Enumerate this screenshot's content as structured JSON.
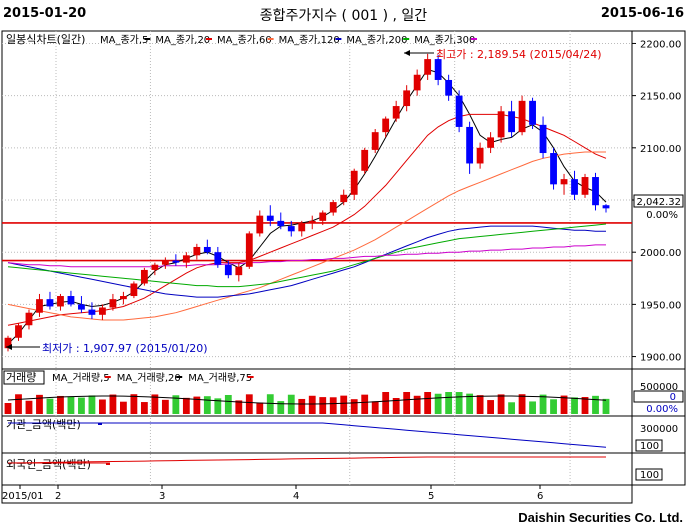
{
  "header": {
    "start_date": "2015-01-20",
    "title": "종합주가지수 ( 001 ) , 일간",
    "end_date": "2015-06-16"
  },
  "price_panel": {
    "legend_title": "일봉식차트(일간)",
    "ma_labels": [
      "MA_종가,5",
      "MA_종가,20",
      "MA_종가,60",
      "MA_종가,120",
      "MA_종가,200",
      "MA_종가,300"
    ],
    "ma_colors": [
      "#000000",
      "#e00000",
      "#ff6a3d",
      "#0000c0",
      "#00aa00",
      "#cc00cc"
    ],
    "high_label": "최고가 : 2,189.54 (2015/04/24)",
    "low_label": "최저가 : 1,907.97 (2015/01/20)",
    "y_ticks": [
      "2200.00",
      "2150.00",
      "2100.00",
      "2050.00",
      "2000.00",
      "1950.00",
      "1900.00"
    ],
    "current_value": "2,042.32",
    "current_pct": "0.00%"
  },
  "volume_panel": {
    "legend_title": "거래량",
    "ma_labels": [
      "MA_거래량,5",
      "MA_거래량,20",
      "MA_거래량,75"
    ],
    "y_tick": "500000",
    "current_value": "0",
    "current_pct": "0.00%"
  },
  "inst_panel": {
    "legend_title": "기관_금액(백만)",
    "y_tick": "300000",
    "box": "100"
  },
  "foreign_panel": {
    "legend_title": "외국인_금액(백만)",
    "box": "100"
  },
  "x_axis": {
    "labels": [
      "2015/01",
      "2",
      "3",
      "4",
      "5",
      "6"
    ]
  },
  "footer": {
    "brand": "Daishin Securities Co. Ltd."
  },
  "chart_data": {
    "type": "candlestick",
    "y_range": [
      1890,
      2210
    ],
    "highlight_lines": [
      2028,
      1992
    ],
    "candles": [
      [
        1908,
        1920,
        1905,
        1918,
        1
      ],
      [
        1918,
        1932,
        1915,
        1930,
        1
      ],
      [
        1930,
        1945,
        1926,
        1942,
        1
      ],
      [
        1942,
        1960,
        1938,
        1955,
        1
      ],
      [
        1955,
        1962,
        1945,
        1948,
        0
      ],
      [
        1948,
        1960,
        1944,
        1958,
        1
      ],
      [
        1958,
        1963,
        1948,
        1950,
        0
      ],
      [
        1950,
        1958,
        1942,
        1945,
        0
      ],
      [
        1945,
        1952,
        1936,
        1940,
        0
      ],
      [
        1940,
        1950,
        1935,
        1947,
        1
      ],
      [
        1947,
        1960,
        1944,
        1955,
        1
      ],
      [
        1955,
        1962,
        1950,
        1958,
        1
      ],
      [
        1958,
        1972,
        1956,
        1970,
        1
      ],
      [
        1970,
        1985,
        1968,
        1983,
        1
      ],
      [
        1983,
        1990,
        1978,
        1988,
        1
      ],
      [
        1988,
        1995,
        1984,
        1992,
        1
      ],
      [
        1992,
        1998,
        1987,
        1990,
        0
      ],
      [
        1990,
        2000,
        1985,
        1997,
        1
      ],
      [
        1997,
        2008,
        1993,
        2005,
        1
      ],
      [
        2005,
        2012,
        1998,
        2000,
        0
      ],
      [
        2000,
        2005,
        1985,
        1988,
        0
      ],
      [
        1988,
        1992,
        1975,
        1978,
        0
      ],
      [
        1978,
        1990,
        1972,
        1986,
        1
      ],
      [
        1986,
        2020,
        1984,
        2018,
        1
      ],
      [
        2018,
        2040,
        2015,
        2035,
        1
      ],
      [
        2035,
        2045,
        2025,
        2030,
        0
      ],
      [
        2030,
        2038,
        2022,
        2025,
        0
      ],
      [
        2025,
        2030,
        2015,
        2020,
        0
      ],
      [
        2020,
        2030,
        2015,
        2028,
        1
      ],
      [
        2028,
        2035,
        2022,
        2030,
        1
      ],
      [
        2030,
        2040,
        2026,
        2038,
        1
      ],
      [
        2038,
        2050,
        2035,
        2048,
        1
      ],
      [
        2048,
        2060,
        2045,
        2055,
        1
      ],
      [
        2055,
        2080,
        2050,
        2078,
        1
      ],
      [
        2078,
        2100,
        2075,
        2098,
        1
      ],
      [
        2098,
        2118,
        2095,
        2115,
        1
      ],
      [
        2115,
        2130,
        2110,
        2128,
        1
      ],
      [
        2128,
        2145,
        2125,
        2140,
        1
      ],
      [
        2140,
        2160,
        2135,
        2155,
        1
      ],
      [
        2155,
        2175,
        2150,
        2170,
        1
      ],
      [
        2170,
        2190,
        2165,
        2185,
        1
      ],
      [
        2185,
        2189,
        2160,
        2165,
        0
      ],
      [
        2165,
        2170,
        2145,
        2150,
        0
      ],
      [
        2150,
        2155,
        2115,
        2120,
        0
      ],
      [
        2120,
        2125,
        2075,
        2085,
        0
      ],
      [
        2085,
        2105,
        2080,
        2100,
        1
      ],
      [
        2100,
        2115,
        2095,
        2110,
        1
      ],
      [
        2110,
        2140,
        2105,
        2135,
        1
      ],
      [
        2135,
        2145,
        2110,
        2115,
        0
      ],
      [
        2115,
        2150,
        2112,
        2145,
        1
      ],
      [
        2145,
        2148,
        2118,
        2122,
        0
      ],
      [
        2122,
        2130,
        2090,
        2095,
        0
      ],
      [
        2095,
        2100,
        2060,
        2065,
        0
      ],
      [
        2065,
        2075,
        2055,
        2070,
        1
      ],
      [
        2070,
        2078,
        2050,
        2055,
        0
      ],
      [
        2055,
        2075,
        2052,
        2072,
        1
      ],
      [
        2072,
        2076,
        2040,
        2045,
        0
      ],
      [
        2045,
        2046,
        2038,
        2042,
        0
      ]
    ],
    "ma5": [
      1912,
      1922,
      1935,
      1948,
      1950,
      1952,
      1953,
      1950,
      1948,
      1949,
      1952,
      1956,
      1962,
      1972,
      1982,
      1988,
      1990,
      1994,
      1998,
      2000,
      1996,
      1990,
      1985,
      1992,
      2005,
      2018,
      2025,
      2026,
      2028,
      2030,
      2034,
      2040,
      2048,
      2060,
      2075,
      2092,
      2110,
      2128,
      2145,
      2160,
      2175,
      2172,
      2162,
      2150,
      2132,
      2112,
      2105,
      2108,
      2110,
      2118,
      2122,
      2115,
      2100,
      2082,
      2068,
      2062,
      2058,
      2048
    ],
    "ma20": [
      1930,
      1932,
      1934,
      1936,
      1938,
      1940,
      1941,
      1942,
      1943,
      1944,
      1946,
      1948,
      1952,
      1956,
      1962,
      1968,
      1974,
      1980,
      1985,
      1988,
      1990,
      1990,
      1990,
      1992,
      1996,
      2000,
      2004,
      2008,
      2012,
      2016,
      2020,
      2024,
      2030,
      2036,
      2044,
      2054,
      2064,
      2076,
      2088,
      2100,
      2112,
      2120,
      2126,
      2130,
      2132,
      2132,
      2132,
      2132,
      2130,
      2128,
      2124,
      2120,
      2116,
      2112,
      2106,
      2100,
      2094,
      2090
    ],
    "ma60": [
      1950,
      1948,
      1946,
      1944,
      1942,
      1940,
      1938,
      1937,
      1936,
      1935,
      1935,
      1935,
      1936,
      1937,
      1938,
      1940,
      1942,
      1945,
      1948,
      1951,
      1954,
      1957,
      1960,
      1963,
      1966,
      1970,
      1974,
      1978,
      1982,
      1986,
      1990,
      1994,
      1998,
      2002,
      2007,
      2012,
      2018,
      2024,
      2030,
      2036,
      2042,
      2048,
      2054,
      2059,
      2063,
      2067,
      2071,
      2075,
      2079,
      2083,
      2087,
      2090,
      2092,
      2094,
      2095,
      2096,
      2096,
      2096
    ],
    "ma120": [
      1990,
      1988,
      1986,
      1984,
      1982,
      1980,
      1978,
      1976,
      1974,
      1972,
      1970,
      1968,
      1966,
      1964,
      1962,
      1960,
      1959,
      1958,
      1957,
      1957,
      1957,
      1958,
      1959,
      1960,
      1962,
      1964,
      1966,
      1968,
      1971,
      1974,
      1977,
      1980,
      1983,
      1986,
      1990,
      1994,
      1998,
      2002,
      2006,
      2010,
      2014,
      2017,
      2020,
      2022,
      2023,
      2024,
      2025,
      2025,
      2025,
      2025,
      2025,
      2024,
      2023,
      2022,
      2021,
      2021,
      2020,
      2020
    ],
    "ma200": [
      1986,
      1985,
      1984,
      1983,
      1982,
      1981,
      1980,
      1979,
      1978,
      1977,
      1976,
      1975,
      1974,
      1973,
      1972,
      1971,
      1970,
      1969,
      1968,
      1968,
      1967,
      1967,
      1967,
      1968,
      1969,
      1970,
      1972,
      1974,
      1976,
      1978,
      1980,
      1982,
      1985,
      1988,
      1991,
      1994,
      1997,
      2000,
      2003,
      2005,
      2007,
      2009,
      2011,
      2013,
      2014,
      2015,
      2016,
      2017,
      2018,
      2019,
      2020,
      2021,
      2022,
      2023,
      2024,
      2025,
      2026,
      2027
    ],
    "ma300": [
      1990,
      1989,
      1988,
      1988,
      1987,
      1987,
      1986,
      1986,
      1986,
      1986,
      1986,
      1986,
      1986,
      1986,
      1986,
      1987,
      1987,
      1987,
      1988,
      1988,
      1988,
      1989,
      1989,
      1990,
      1990,
      1991,
      1991,
      1992,
      1992,
      1993,
      1993,
      1994,
      1994,
      1995,
      1996,
      1996,
      1997,
      1997,
      1998,
      1998,
      1999,
      1999,
      2000,
      2000,
      2001,
      2001,
      2002,
      2002,
      2003,
      2003,
      2004,
      2004,
      2005,
      2005,
      2006,
      2006,
      2007,
      2007
    ]
  }
}
